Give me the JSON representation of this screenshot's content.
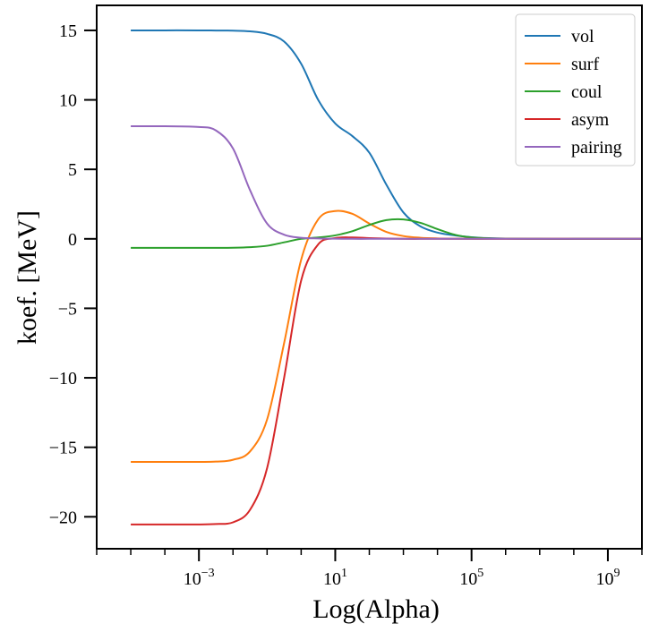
{
  "chart_data": {
    "type": "line",
    "title": "",
    "xlabel": "Log(Alpha)",
    "ylabel": "koef. [MeV]",
    "xscale": "log",
    "xlim": [
      1e-06,
      10000000000.0
    ],
    "ylim": [
      -22.3,
      16.8
    ],
    "grid": false,
    "legend_position": "top-right",
    "x_ticks": [
      {
        "value": 0.001,
        "base": "10",
        "exp": "−3"
      },
      {
        "value": 10,
        "base": "10",
        "exp": "1"
      },
      {
        "value": 100000,
        "base": "10",
        "exp": "5"
      },
      {
        "value": 1000000000,
        "base": "10",
        "exp": "9"
      }
    ],
    "y_ticks": [
      {
        "value": 15,
        "label": "15"
      },
      {
        "value": 10,
        "label": "10"
      },
      {
        "value": 5,
        "label": "5"
      },
      {
        "value": 0,
        "label": "0"
      },
      {
        "value": -5,
        "label": "−5"
      },
      {
        "value": -10,
        "label": "−10"
      },
      {
        "value": -15,
        "label": "−15"
      },
      {
        "value": -20,
        "label": "−20"
      }
    ],
    "x": [
      1e-05,
      0.0001,
      0.001,
      0.00316,
      0.01,
      0.0316,
      0.1,
      0.316,
      1,
      3.16,
      10,
      31.6,
      100,
      316,
      1000,
      3160,
      10000,
      31600,
      100000,
      316000,
      1000000,
      10000000,
      100000000,
      1000000000,
      10000000000
    ],
    "series": [
      {
        "name": "vol",
        "color": "#1f77b4",
        "values": [
          15.0,
          15.0,
          15.0,
          14.99,
          14.98,
          14.93,
          14.75,
          14.2,
          12.6,
          10.0,
          8.3,
          7.4,
          6.2,
          3.9,
          1.9,
          0.9,
          0.45,
          0.25,
          0.12,
          0.05,
          0.02,
          0.0,
          0.0,
          0.0,
          0.0
        ]
      },
      {
        "name": "surf",
        "color": "#ff7f0e",
        "values": [
          -16.05,
          -16.05,
          -16.05,
          -16.03,
          -15.9,
          -15.3,
          -13.0,
          -7.5,
          -1.5,
          1.4,
          2.0,
          1.8,
          1.1,
          0.5,
          0.2,
          0.08,
          0.03,
          0.01,
          0.0,
          0.0,
          0.0,
          0.0,
          0.0,
          0.0,
          0.0
        ]
      },
      {
        "name": "coul",
        "color": "#2ca02c",
        "values": [
          -0.65,
          -0.65,
          -0.65,
          -0.65,
          -0.64,
          -0.6,
          -0.5,
          -0.25,
          0.0,
          0.1,
          0.25,
          0.55,
          1.0,
          1.35,
          1.4,
          1.15,
          0.7,
          0.3,
          0.1,
          0.04,
          0.02,
          0.0,
          0.0,
          0.0,
          0.0
        ]
      },
      {
        "name": "asym",
        "color": "#d62728",
        "values": [
          -20.55,
          -20.55,
          -20.55,
          -20.52,
          -20.4,
          -19.5,
          -16.5,
          -10.0,
          -3.0,
          -0.4,
          0.05,
          0.1,
          0.05,
          0.02,
          0.0,
          0.0,
          0.0,
          0.0,
          0.0,
          0.0,
          0.0,
          0.0,
          0.0,
          0.0,
          0.0
        ]
      },
      {
        "name": "pairing",
        "color": "#9467bd",
        "values": [
          8.1,
          8.1,
          8.05,
          7.8,
          6.5,
          3.5,
          1.1,
          0.3,
          0.08,
          0.03,
          0.01,
          0.0,
          0.0,
          0.0,
          0.0,
          0.0,
          0.0,
          0.0,
          0.0,
          0.0,
          0.0,
          0.0,
          0.0,
          0.0,
          0.0
        ]
      }
    ]
  }
}
